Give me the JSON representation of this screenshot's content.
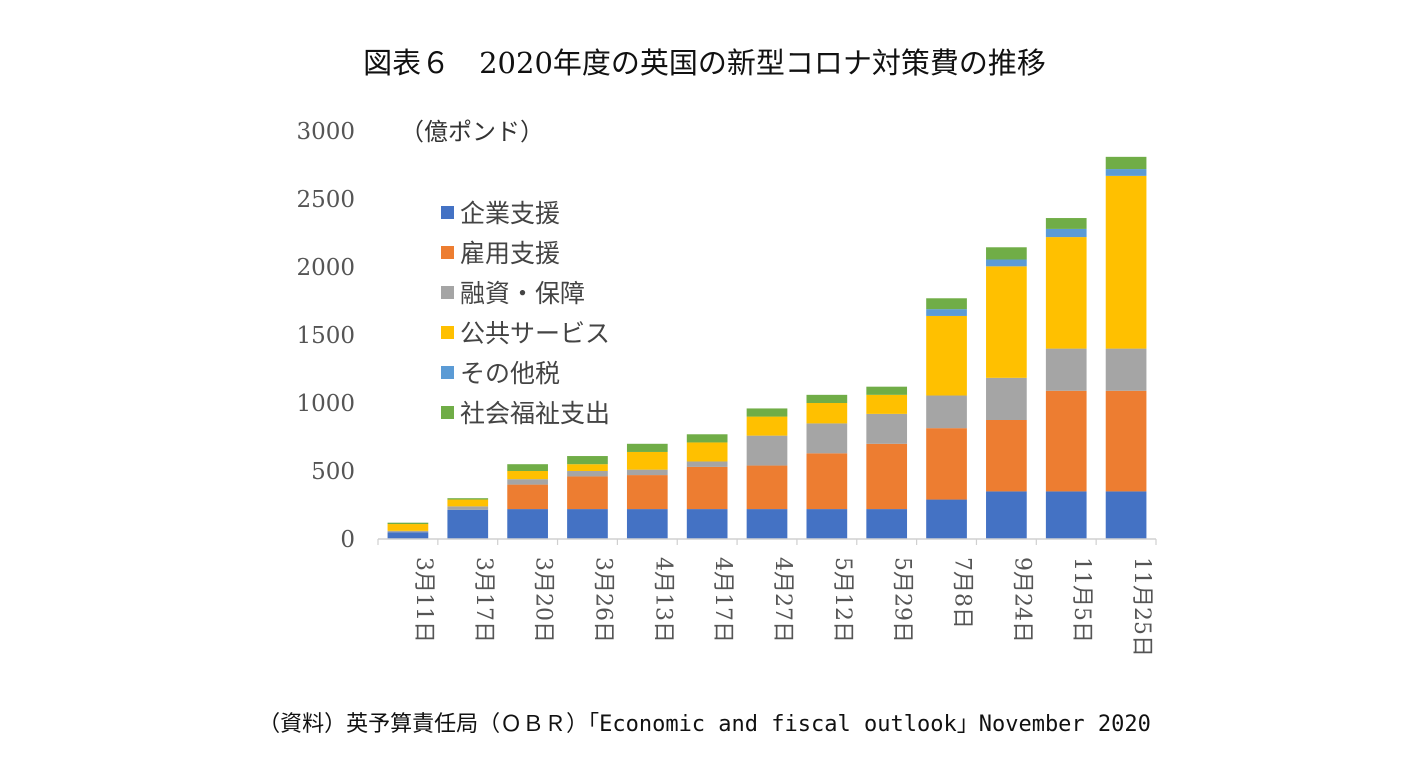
{
  "chart_data": {
    "type": "bar",
    "stacked": true,
    "title": "図表６　2020年度の英国の新型コロナ対策費の推移",
    "unit_label": "（億ポンド）",
    "ylim": [
      0,
      3000
    ],
    "yticks": [
      0,
      500,
      1000,
      1500,
      2000,
      2500,
      3000
    ],
    "categories": [
      "3月11日",
      "3月17日",
      "3月20日",
      "3月26日",
      "4月13日",
      "4月17日",
      "4月27日",
      "5月12日",
      "5月29日",
      "7月8日",
      "9月24日",
      "11月5日",
      "11月25日"
    ],
    "series": [
      {
        "name": "企業支援",
        "color": "#4472C4",
        "values": [
          50,
          215,
          220,
          220,
          220,
          220,
          220,
          220,
          220,
          290,
          350,
          350,
          350
        ]
      },
      {
        "name": "雇用支援",
        "color": "#ED7D31",
        "values": [
          0,
          0,
          180,
          240,
          250,
          310,
          320,
          410,
          480,
          525,
          525,
          740,
          740
        ]
      },
      {
        "name": "融資・保障",
        "color": "#A5A5A5",
        "values": [
          10,
          25,
          40,
          40,
          40,
          40,
          220,
          220,
          220,
          240,
          310,
          310,
          310
        ]
      },
      {
        "name": "公共サービス",
        "color": "#FFC000",
        "values": [
          50,
          50,
          60,
          50,
          130,
          140,
          140,
          150,
          140,
          585,
          820,
          820,
          1270
        ]
      },
      {
        "name": "その他税",
        "color": "#5B9BD5",
        "values": [
          0,
          0,
          0,
          0,
          0,
          0,
          0,
          0,
          0,
          50,
          50,
          60,
          50
        ]
      },
      {
        "name": "社会福祉支出",
        "color": "#70AD47",
        "values": [
          10,
          10,
          50,
          60,
          60,
          60,
          60,
          60,
          60,
          80,
          90,
          80,
          90
        ]
      }
    ],
    "xlabel": "",
    "ylabel": "",
    "grid": false,
    "legend": "upper-left"
  },
  "source_note": "（資料）英予算責任局（ＯＢＲ）「Economic and fiscal outlook」November 2020"
}
